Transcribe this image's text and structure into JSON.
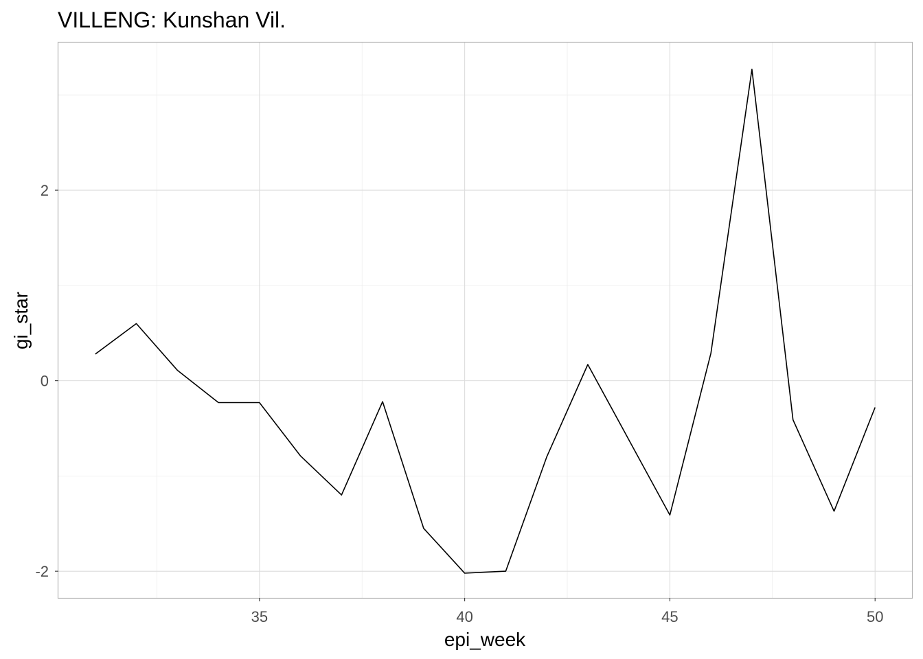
{
  "chart_data": {
    "type": "line",
    "title": "VILLENG: Kunshan Vil.",
    "xlabel": "epi_week",
    "ylabel": "gi_star",
    "x": [
      31,
      32,
      33,
      34,
      35,
      36,
      37,
      38,
      39,
      40,
      41,
      42,
      43,
      44,
      45,
      46,
      47,
      48,
      49,
      50
    ],
    "y": [
      0.28,
      0.6,
      0.11,
      -0.23,
      -0.23,
      -0.79,
      -1.2,
      -0.22,
      -1.55,
      -2.02,
      -2.0,
      -0.8,
      0.17,
      -0.62,
      -1.41,
      0.29,
      3.27,
      -0.41,
      -1.37,
      -0.28
    ],
    "xlim": [
      30.1,
      50.9
    ],
    "ylim": [
      -2.28,
      3.55
    ],
    "x_ticks": [
      35,
      40,
      45,
      50
    ],
    "y_ticks": [
      -2,
      0,
      2
    ],
    "grid": true,
    "line_color": "#000000"
  }
}
